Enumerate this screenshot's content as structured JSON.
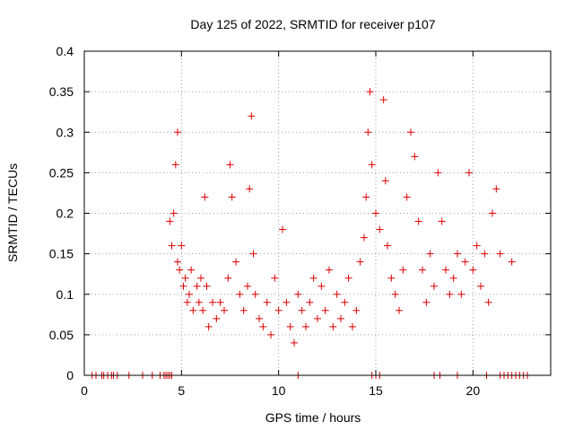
{
  "chart_data": {
    "type": "scatter",
    "title": "Day 125 of 2022, SRMTID for receiver p107",
    "xlabel": "GPS time / hours",
    "ylabel": "SRMTID / TECUs",
    "xlim": [
      0,
      24
    ],
    "ylim": [
      0,
      0.4
    ],
    "xticks": [
      0,
      5,
      10,
      15,
      20
    ],
    "xtick_labels": [
      "0",
      "5",
      "10",
      "15",
      "20"
    ],
    "yticks": [
      0,
      0.05,
      0.1,
      0.15,
      0.2,
      0.25,
      0.3,
      0.35,
      0.4
    ],
    "ytick_labels": [
      "0",
      "0.05",
      "0.1",
      "0.15",
      "0.2",
      "0.25",
      "0.3",
      "0.35",
      "0.4"
    ],
    "grid": true,
    "marker": "+",
    "marker_color": "#dd0000",
    "series": [
      {
        "name": "SRMTID",
        "points": [
          [
            4.4,
            0.19
          ],
          [
            4.5,
            0.16
          ],
          [
            4.6,
            0.2
          ],
          [
            4.7,
            0.26
          ],
          [
            4.8,
            0.3
          ],
          [
            4.8,
            0.14
          ],
          [
            4.9,
            0.13
          ],
          [
            5.0,
            0.16
          ],
          [
            5.1,
            0.11
          ],
          [
            5.2,
            0.12
          ],
          [
            5.3,
            0.09
          ],
          [
            5.4,
            0.1
          ],
          [
            5.5,
            0.13
          ],
          [
            5.6,
            0.08
          ],
          [
            5.8,
            0.11
          ],
          [
            5.9,
            0.09
          ],
          [
            6.0,
            0.12
          ],
          [
            6.1,
            0.08
          ],
          [
            6.2,
            0.22
          ],
          [
            6.3,
            0.11
          ],
          [
            6.4,
            0.06
          ],
          [
            6.6,
            0.09
          ],
          [
            6.8,
            0.07
          ],
          [
            7.0,
            0.09
          ],
          [
            7.2,
            0.08
          ],
          [
            7.4,
            0.12
          ],
          [
            7.5,
            0.26
          ],
          [
            7.6,
            0.22
          ],
          [
            7.8,
            0.14
          ],
          [
            8.0,
            0.1
          ],
          [
            8.2,
            0.08
          ],
          [
            8.4,
            0.11
          ],
          [
            8.5,
            0.23
          ],
          [
            8.6,
            0.32
          ],
          [
            8.7,
            0.15
          ],
          [
            8.8,
            0.1
          ],
          [
            9.0,
            0.07
          ],
          [
            9.2,
            0.06
          ],
          [
            9.4,
            0.09
          ],
          [
            9.6,
            0.05
          ],
          [
            9.8,
            0.12
          ],
          [
            10.0,
            0.08
          ],
          [
            10.2,
            0.18
          ],
          [
            10.4,
            0.09
          ],
          [
            10.6,
            0.06
          ],
          [
            10.8,
            0.04
          ],
          [
            11.0,
            0.1
          ],
          [
            11.2,
            0.08
          ],
          [
            11.4,
            0.06
          ],
          [
            11.6,
            0.09
          ],
          [
            11.8,
            0.12
          ],
          [
            12.0,
            0.07
          ],
          [
            12.2,
            0.11
          ],
          [
            12.4,
            0.08
          ],
          [
            12.6,
            0.13
          ],
          [
            12.8,
            0.06
          ],
          [
            13.0,
            0.1
          ],
          [
            13.2,
            0.07
          ],
          [
            13.4,
            0.09
          ],
          [
            13.6,
            0.12
          ],
          [
            13.8,
            0.06
          ],
          [
            14.0,
            0.08
          ],
          [
            14.2,
            0.14
          ],
          [
            14.4,
            0.17
          ],
          [
            14.5,
            0.22
          ],
          [
            14.6,
            0.3
          ],
          [
            14.7,
            0.35
          ],
          [
            14.8,
            0.26
          ],
          [
            15.0,
            0.2
          ],
          [
            15.2,
            0.18
          ],
          [
            15.4,
            0.34
          ],
          [
            15.5,
            0.24
          ],
          [
            15.6,
            0.16
          ],
          [
            15.8,
            0.12
          ],
          [
            16.0,
            0.1
          ],
          [
            16.2,
            0.08
          ],
          [
            16.4,
            0.13
          ],
          [
            16.6,
            0.22
          ],
          [
            16.8,
            0.3
          ],
          [
            17.0,
            0.27
          ],
          [
            17.2,
            0.19
          ],
          [
            17.4,
            0.13
          ],
          [
            17.6,
            0.09
          ],
          [
            17.8,
            0.15
          ],
          [
            18.0,
            0.11
          ],
          [
            18.2,
            0.25
          ],
          [
            18.4,
            0.19
          ],
          [
            18.6,
            0.13
          ],
          [
            18.8,
            0.1
          ],
          [
            19.0,
            0.12
          ],
          [
            19.2,
            0.15
          ],
          [
            19.4,
            0.1
          ],
          [
            19.6,
            0.14
          ],
          [
            19.8,
            0.25
          ],
          [
            20.0,
            0.13
          ],
          [
            20.2,
            0.16
          ],
          [
            20.4,
            0.11
          ],
          [
            20.6,
            0.15
          ],
          [
            20.8,
            0.09
          ],
          [
            21.0,
            0.2
          ],
          [
            21.2,
            0.23
          ],
          [
            21.4,
            0.15
          ],
          [
            22.0,
            0.14
          ]
        ],
        "zero_points_x": [
          0.4,
          0.6,
          0.9,
          1.0,
          1.2,
          1.4,
          1.5,
          1.7,
          2.3,
          3.0,
          3.5,
          3.9,
          4.1,
          4.2,
          4.3,
          4.4,
          4.5,
          11.0,
          14.8,
          15.0,
          15.2,
          18.0,
          18.3,
          19.2,
          20.7,
          21.4,
          21.6,
          21.8,
          22.0,
          22.2,
          22.4,
          22.6,
          22.8
        ]
      }
    ]
  }
}
